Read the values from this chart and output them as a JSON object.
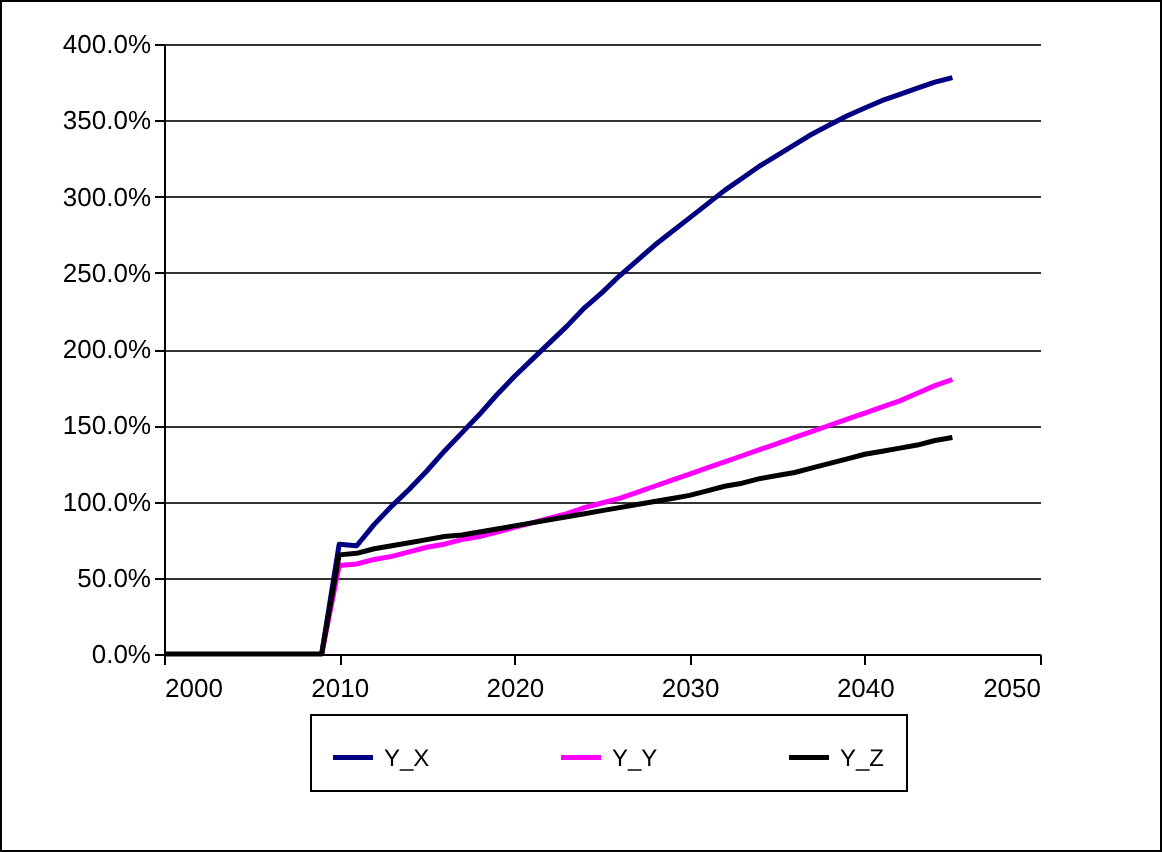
{
  "chart_data": {
    "type": "line",
    "x": [
      2000,
      2001,
      2002,
      2003,
      2004,
      2005,
      2006,
      2007,
      2008,
      2009,
      2010,
      2011,
      2012,
      2013,
      2014,
      2015,
      2016,
      2017,
      2018,
      2019,
      2020,
      2021,
      2022,
      2023,
      2024,
      2025,
      2026,
      2027,
      2028,
      2029,
      2030,
      2031,
      2032,
      2033,
      2034,
      2035,
      2036,
      2037,
      2038,
      2039,
      2040,
      2041,
      2042,
      2043,
      2044,
      2045
    ],
    "series": [
      {
        "name": "Y_X",
        "color": "#000080",
        "values": [
          null,
          null,
          null,
          null,
          null,
          null,
          null,
          null,
          null,
          0,
          72,
          71,
          85,
          97,
          108,
          120,
          133,
          145,
          157,
          170,
          182,
          193,
          204,
          215,
          227,
          237,
          248,
          258,
          268,
          277,
          286,
          295,
          304,
          312,
          320,
          327,
          334,
          341,
          347,
          353,
          358,
          363,
          367,
          371,
          375,
          378
        ]
      },
      {
        "name": "Y_Y",
        "color": "#ff00ff",
        "values": [
          null,
          null,
          null,
          null,
          null,
          null,
          null,
          null,
          null,
          0,
          58,
          59,
          62,
          64,
          67,
          70,
          72,
          75,
          77,
          80,
          83,
          86,
          89,
          92,
          96,
          99,
          102,
          106,
          110,
          114,
          118,
          122,
          126,
          130,
          134,
          138,
          142,
          146,
          150,
          154,
          158,
          162,
          166,
          171,
          176,
          180
        ]
      },
      {
        "name": "Y_Z",
        "color": "#000000",
        "values": [
          0,
          0,
          0,
          0,
          0,
          0,
          0,
          0,
          0,
          0,
          65,
          66,
          69,
          71,
          73,
          75,
          77,
          78,
          80,
          82,
          84,
          86,
          88,
          90,
          92,
          94,
          96,
          98,
          100,
          102,
          104,
          107,
          110,
          112,
          115,
          117,
          119,
          122,
          125,
          128,
          131,
          133,
          135,
          137,
          140,
          142
        ]
      }
    ],
    "xlim": [
      2000,
      2050
    ],
    "xticks": [
      2000,
      2010,
      2020,
      2030,
      2040,
      2050
    ],
    "ylim": [
      0,
      400
    ],
    "yticks": [
      {
        "value": 0,
        "label": "0.0%"
      },
      {
        "value": 50,
        "label": "50.0%"
      },
      {
        "value": 100,
        "label": "100.0%"
      },
      {
        "value": 150,
        "label": "150.0%"
      },
      {
        "value": 200,
        "label": "200.0%"
      },
      {
        "value": 250,
        "label": "250.0%"
      },
      {
        "value": 300,
        "label": "300.0%"
      },
      {
        "value": 350,
        "label": "350.0%"
      },
      {
        "value": 400,
        "label": "400.0%"
      }
    ],
    "grid": "y",
    "legend": "bottom",
    "marker": "none",
    "line_style": "solid"
  }
}
